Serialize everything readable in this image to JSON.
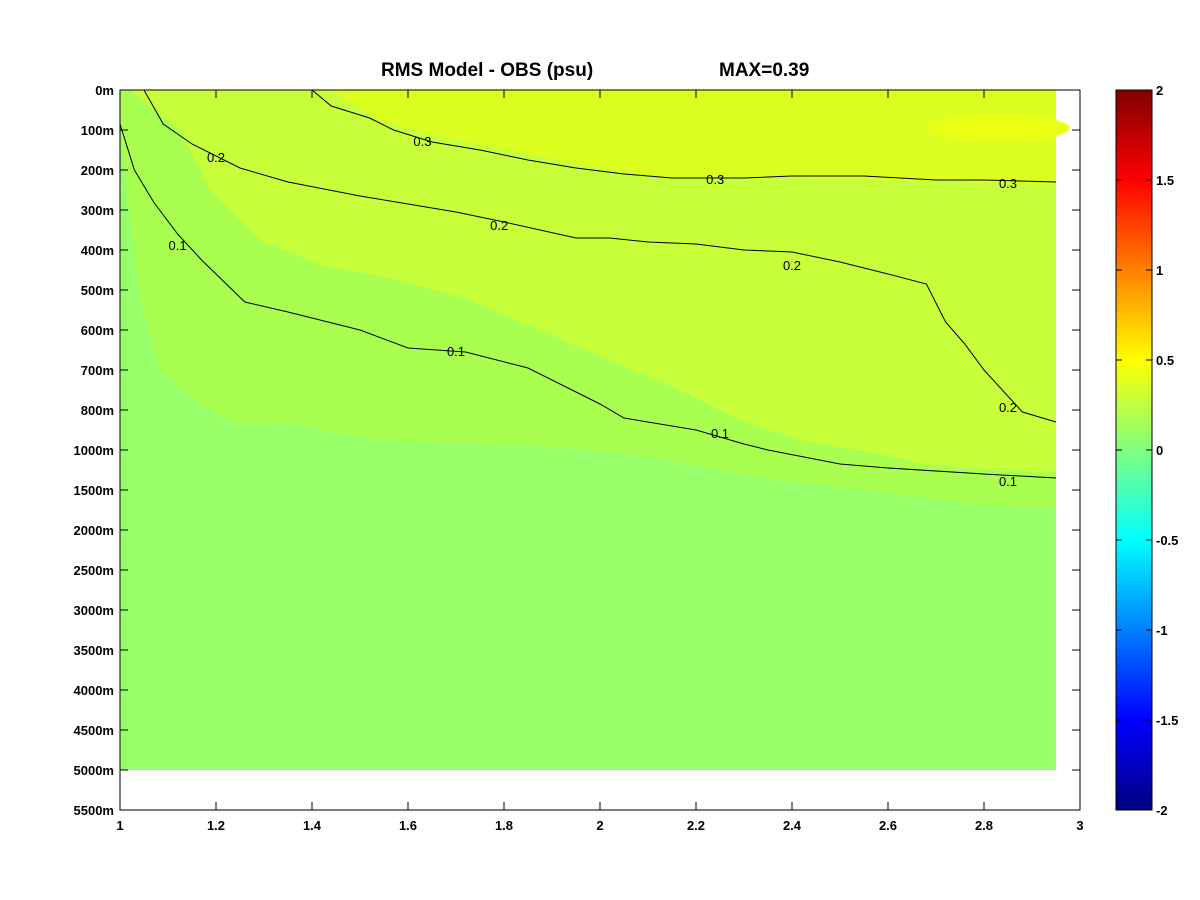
{
  "chart_data": {
    "type": "contour",
    "title": "RMS Model - OBS (psu)",
    "subtitle": "MAX=0.39",
    "xlabel": "",
    "ylabel": "",
    "xlim": [
      1,
      3
    ],
    "x_ticks": [
      1,
      1.2,
      1.4,
      1.6,
      1.8,
      2,
      2.2,
      2.4,
      2.6,
      2.8,
      3
    ],
    "x_tick_labels": [
      "1",
      "1.2",
      "1.4",
      "1.6",
      "1.8",
      "2",
      "2.2",
      "2.4",
      "2.6",
      "2.8",
      "3"
    ],
    "y_tick_labels": [
      "0m",
      "100m",
      "200m",
      "300m",
      "400m",
      "500m",
      "600m",
      "700m",
      "800m",
      "1000m",
      "1500m",
      "2000m",
      "2500m",
      "3000m",
      "3500m",
      "4000m",
      "4500m",
      "5000m",
      "5500m"
    ],
    "data_extent": {
      "x": [
        1,
        2.95
      ],
      "depth_max": "5000m"
    },
    "colorbar": {
      "range": [
        -2,
        2
      ],
      "ticks": [
        2,
        1.5,
        1,
        0.5,
        0,
        -0.5,
        -1,
        -1.5,
        -2
      ],
      "tick_labels": [
        "2",
        "1.5",
        "1",
        "0.5",
        "0",
        "-0.5",
        "-1",
        "-1.5",
        "-2"
      ],
      "colormap": "jet"
    },
    "fill_colors": {
      "below_0.1": "#96ff6a",
      "0.1_to_0.2": "#a9ff4f",
      "0.2_to_0.3": "#c7ff3a",
      "above_0.3": "#dcff20",
      "max_region": "#eaff12"
    },
    "contours": [
      {
        "level": "0.3",
        "points": [
          [
            1.4,
            0
          ],
          [
            1.44,
            0.4
          ],
          [
            1.52,
            0.7
          ],
          [
            1.57,
            1.0
          ],
          [
            1.65,
            1.3
          ],
          [
            1.75,
            1.5
          ],
          [
            1.85,
            1.75
          ],
          [
            1.95,
            1.95
          ],
          [
            2.05,
            2.1
          ],
          [
            2.15,
            2.2
          ],
          [
            2.3,
            2.2
          ],
          [
            2.4,
            2.15
          ],
          [
            2.55,
            2.15
          ],
          [
            2.7,
            2.25
          ],
          [
            2.8,
            2.25
          ],
          [
            2.95,
            2.3
          ]
        ],
        "labels": [
          [
            1.63,
            1.3
          ],
          [
            2.24,
            2.25
          ],
          [
            2.85,
            2.35
          ]
        ]
      },
      {
        "level": "0.2",
        "points": [
          [
            1.05,
            0
          ],
          [
            1.09,
            0.85
          ],
          [
            1.15,
            1.35
          ],
          [
            1.25,
            1.95
          ],
          [
            1.35,
            2.3
          ],
          [
            1.5,
            2.65
          ],
          [
            1.65,
            2.95
          ],
          [
            1.7,
            3.05
          ],
          [
            1.8,
            3.3
          ],
          [
            1.95,
            3.7
          ],
          [
            2.02,
            3.7
          ],
          [
            2.1,
            3.8
          ],
          [
            2.2,
            3.85
          ],
          [
            2.3,
            4.0
          ],
          [
            2.4,
            4.05
          ],
          [
            2.5,
            4.3
          ],
          [
            2.6,
            4.6
          ],
          [
            2.68,
            4.85
          ],
          [
            2.72,
            5.8
          ],
          [
            2.76,
            6.35
          ],
          [
            2.8,
            7.0
          ],
          [
            2.88,
            8.05
          ],
          [
            2.95,
            8.3
          ]
        ],
        "labels": [
          [
            1.2,
            1.7
          ],
          [
            1.79,
            3.4
          ],
          [
            2.4,
            4.4
          ],
          [
            2.85,
            7.95
          ]
        ]
      },
      {
        "level": "0.1",
        "points": [
          [
            1.0,
            0.85
          ],
          [
            1.03,
            2.0
          ],
          [
            1.07,
            2.8
          ],
          [
            1.12,
            3.6
          ],
          [
            1.17,
            4.25
          ],
          [
            1.2,
            4.6
          ],
          [
            1.26,
            5.3
          ],
          [
            1.35,
            5.55
          ],
          [
            1.5,
            6.0
          ],
          [
            1.6,
            6.45
          ],
          [
            1.72,
            6.55
          ],
          [
            1.85,
            6.95
          ],
          [
            1.95,
            7.55
          ],
          [
            2.0,
            7.85
          ],
          [
            2.05,
            8.2
          ],
          [
            2.2,
            8.5
          ],
          [
            2.3,
            8.85
          ],
          [
            2.35,
            9.0
          ],
          [
            2.5,
            9.35
          ],
          [
            2.6,
            9.45
          ],
          [
            2.8,
            9.6
          ],
          [
            2.95,
            9.7
          ]
        ],
        "labels": [
          [
            1.12,
            3.9
          ],
          [
            1.7,
            6.55
          ],
          [
            2.25,
            8.6
          ],
          [
            2.85,
            9.8
          ]
        ]
      }
    ]
  }
}
